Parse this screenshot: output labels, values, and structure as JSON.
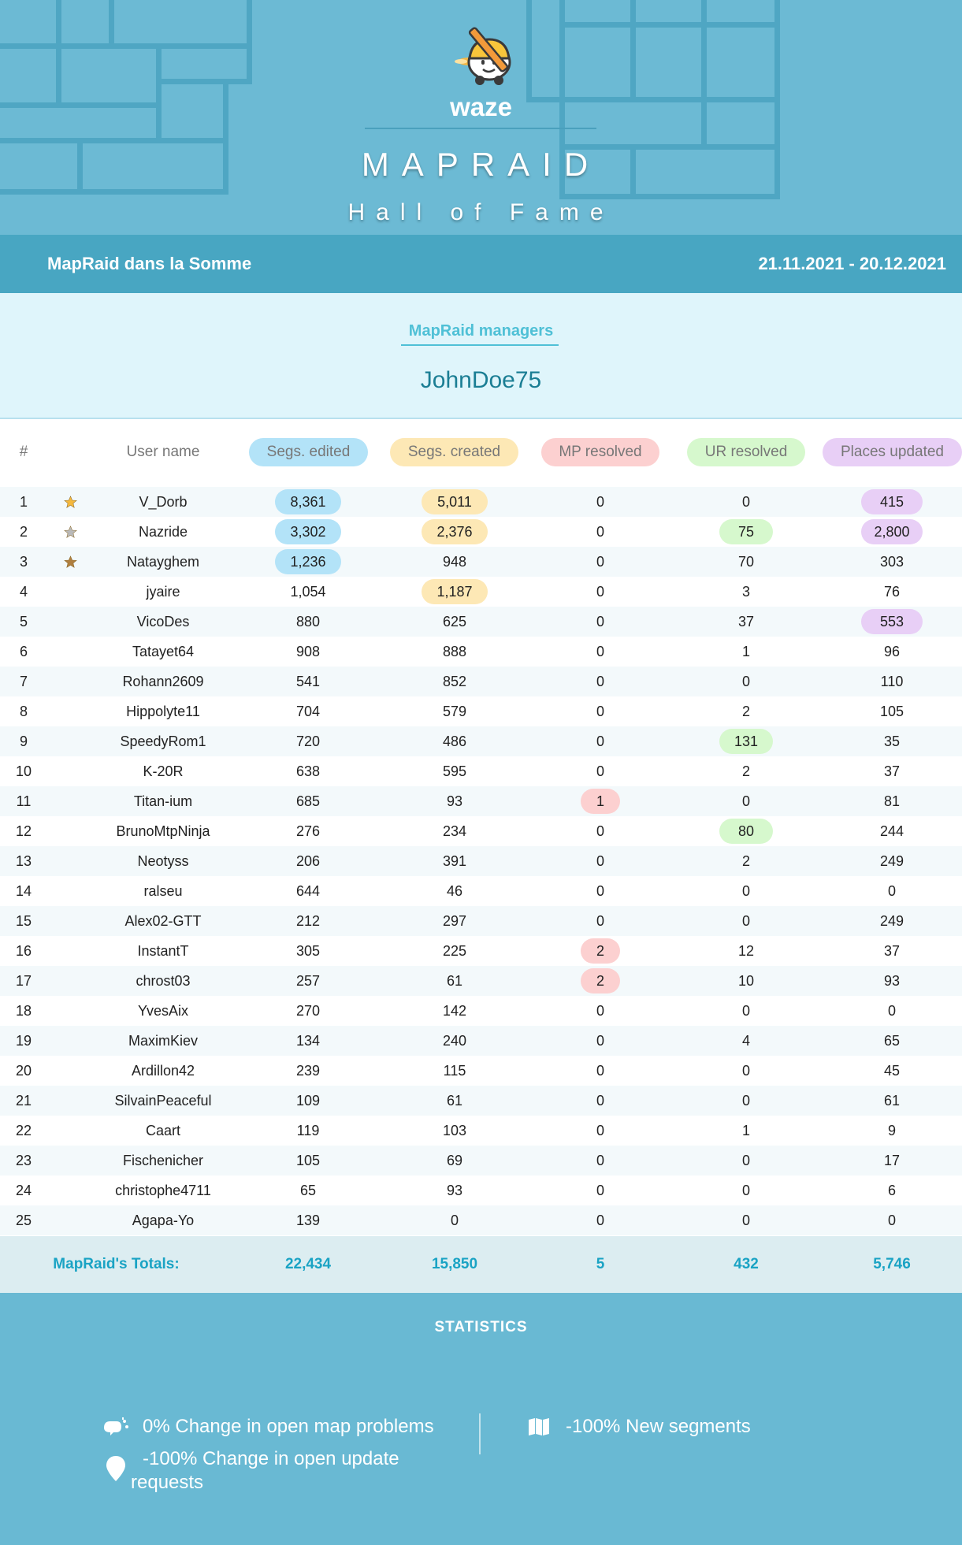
{
  "header": {
    "brand": "waze",
    "title": "MAPRAID",
    "subtitle": "Hall of Fame"
  },
  "band": {
    "event_name": "MapRaid dans la Somme",
    "date_range": "21.11.2021 - 20.12.2021"
  },
  "managers": {
    "label": "MapRaid managers",
    "name": "JohnDoe75"
  },
  "table": {
    "headers": {
      "rank": "#",
      "user": "User name",
      "segs_edited": "Segs. edited",
      "segs_created": "Segs. created",
      "mp_resolved": "MP resolved",
      "ur_resolved": "UR resolved",
      "places_updated": "Places updated"
    },
    "header_colors": {
      "segs_edited": "#b3e3f8",
      "segs_created": "#fde8b5",
      "mp_resolved": "#fcd0d0",
      "ur_resolved": "#d6f8cd",
      "places_updated": "#e8cff6"
    },
    "rows": [
      {
        "rank": "1",
        "user": "V_Dorb",
        "star": "gold",
        "se": "8,361",
        "sc": "5,011",
        "mp": "0",
        "ur": "0",
        "pu": "415",
        "hl": [
          "se",
          "sc",
          "pu"
        ]
      },
      {
        "rank": "2",
        "user": "Nazride",
        "star": "silver",
        "se": "3,302",
        "sc": "2,376",
        "mp": "0",
        "ur": "75",
        "pu": "2,800",
        "hl": [
          "se",
          "sc",
          "ur",
          "pu"
        ]
      },
      {
        "rank": "3",
        "user": "Natayghem",
        "star": "bronze",
        "se": "1,236",
        "sc": "948",
        "mp": "0",
        "ur": "70",
        "pu": "303",
        "hl": [
          "se"
        ]
      },
      {
        "rank": "4",
        "user": "jyaire",
        "se": "1,054",
        "sc": "1,187",
        "mp": "0",
        "ur": "3",
        "pu": "76",
        "hl": [
          "sc"
        ]
      },
      {
        "rank": "5",
        "user": "VicoDes",
        "se": "880",
        "sc": "625",
        "mp": "0",
        "ur": "37",
        "pu": "553",
        "hl": [
          "pu"
        ]
      },
      {
        "rank": "6",
        "user": "Tatayet64",
        "se": "908",
        "sc": "888",
        "mp": "0",
        "ur": "1",
        "pu": "96",
        "hl": []
      },
      {
        "rank": "7",
        "user": "Rohann2609",
        "se": "541",
        "sc": "852",
        "mp": "0",
        "ur": "0",
        "pu": "110",
        "hl": []
      },
      {
        "rank": "8",
        "user": "Hippolyte11",
        "se": "704",
        "sc": "579",
        "mp": "0",
        "ur": "2",
        "pu": "105",
        "hl": []
      },
      {
        "rank": "9",
        "user": "SpeedyRom1",
        "se": "720",
        "sc": "486",
        "mp": "0",
        "ur": "131",
        "pu": "35",
        "hl": [
          "ur"
        ]
      },
      {
        "rank": "10",
        "user": "K-20R",
        "se": "638",
        "sc": "595",
        "mp": "0",
        "ur": "2",
        "pu": "37",
        "hl": []
      },
      {
        "rank": "11",
        "user": "Titan-ium",
        "se": "685",
        "sc": "93",
        "mp": "1",
        "ur": "0",
        "pu": "81",
        "hl": [
          "mp"
        ]
      },
      {
        "rank": "12",
        "user": "BrunoMtpNinja",
        "se": "276",
        "sc": "234",
        "mp": "0",
        "ur": "80",
        "pu": "244",
        "hl": [
          "ur"
        ]
      },
      {
        "rank": "13",
        "user": "Neotyss",
        "se": "206",
        "sc": "391",
        "mp": "0",
        "ur": "2",
        "pu": "249",
        "hl": []
      },
      {
        "rank": "14",
        "user": "ralseu",
        "se": "644",
        "sc": "46",
        "mp": "0",
        "ur": "0",
        "pu": "0",
        "hl": []
      },
      {
        "rank": "15",
        "user": "Alex02-GTT",
        "se": "212",
        "sc": "297",
        "mp": "0",
        "ur": "0",
        "pu": "249",
        "hl": []
      },
      {
        "rank": "16",
        "user": "InstantT",
        "se": "305",
        "sc": "225",
        "mp": "2",
        "ur": "12",
        "pu": "37",
        "hl": [
          "mp"
        ]
      },
      {
        "rank": "17",
        "user": "chrost03",
        "se": "257",
        "sc": "61",
        "mp": "2",
        "ur": "10",
        "pu": "93",
        "hl": [
          "mp"
        ]
      },
      {
        "rank": "18",
        "user": "YvesAix",
        "se": "270",
        "sc": "142",
        "mp": "0",
        "ur": "0",
        "pu": "0",
        "hl": []
      },
      {
        "rank": "19",
        "user": "MaximKiev",
        "se": "134",
        "sc": "240",
        "mp": "0",
        "ur": "4",
        "pu": "65",
        "hl": []
      },
      {
        "rank": "20",
        "user": "Ardillon42",
        "se": "239",
        "sc": "115",
        "mp": "0",
        "ur": "0",
        "pu": "45",
        "hl": []
      },
      {
        "rank": "21",
        "user": "SilvainPeaceful",
        "se": "109",
        "sc": "61",
        "mp": "0",
        "ur": "0",
        "pu": "61",
        "hl": []
      },
      {
        "rank": "22",
        "user": "Caart",
        "se": "119",
        "sc": "103",
        "mp": "0",
        "ur": "1",
        "pu": "9",
        "hl": []
      },
      {
        "rank": "23",
        "user": "Fischenicher",
        "se": "105",
        "sc": "69",
        "mp": "0",
        "ur": "0",
        "pu": "17",
        "hl": []
      },
      {
        "rank": "24",
        "user": "christophe4711",
        "se": "65",
        "sc": "93",
        "mp": "0",
        "ur": "0",
        "pu": "6",
        "hl": []
      },
      {
        "rank": "25",
        "user": "Agapa-Yo",
        "se": "139",
        "sc": "0",
        "mp": "0",
        "ur": "0",
        "pu": "0",
        "hl": []
      }
    ],
    "totals": {
      "label": "MapRaid's Totals:",
      "se": "22,434",
      "sc": "15,850",
      "mp": "5",
      "ur": "432",
      "pu": "5,746"
    }
  },
  "stats": {
    "title": "STATISTICS",
    "items": [
      {
        "icon": "map-problem-icon",
        "text": "0% Change in open map problems"
      },
      {
        "icon": "map-icon",
        "text": "-100% New segments"
      },
      {
        "icon": "location-pin-icon",
        "text": "-100% Change in open update requests"
      }
    ]
  }
}
